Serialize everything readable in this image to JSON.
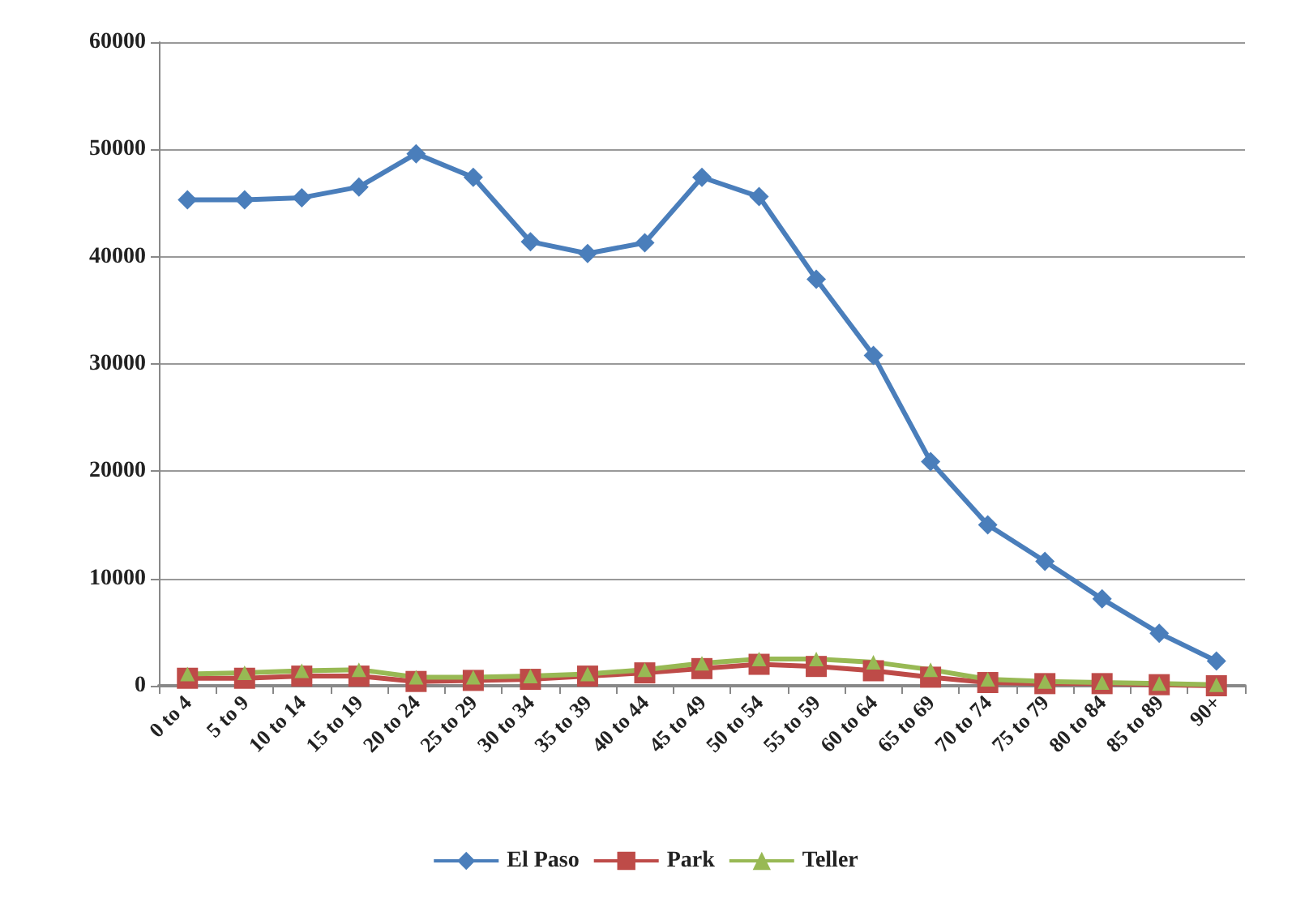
{
  "chart_data": {
    "type": "line",
    "categories": [
      "0 to 4",
      "5 to 9",
      "10 to 14",
      "15 to 19",
      "20 to 24",
      "25 to 29",
      "30 to 34",
      "35 to 39",
      "40 to 44",
      "45 to 49",
      "50 to 54",
      "55 to 59",
      "60 to 64",
      "65 to 69",
      "70 to 74",
      "75 to 79",
      "80 to 84",
      "85 to 89",
      "90+"
    ],
    "series": [
      {
        "name": "El Paso",
        "color": "#4a7ebb",
        "marker": "diamond",
        "values": [
          45300,
          45300,
          45500,
          46500,
          49600,
          47400,
          41400,
          40300,
          41300,
          47400,
          45600,
          37900,
          30800,
          20900,
          15000,
          11600,
          8100,
          4900,
          2300
        ]
      },
      {
        "name": "Park",
        "color": "#be4b48",
        "marker": "square",
        "values": [
          700,
          700,
          900,
          900,
          400,
          500,
          600,
          900,
          1200,
          1600,
          2000,
          1800,
          1400,
          800,
          300,
          200,
          200,
          100,
          0
        ]
      },
      {
        "name": "Teller",
        "color": "#98b954",
        "marker": "triangle",
        "values": [
          1100,
          1200,
          1400,
          1500,
          800,
          800,
          900,
          1100,
          1500,
          2100,
          2500,
          2500,
          2200,
          1500,
          600,
          400,
          300,
          200,
          100
        ]
      }
    ],
    "ylim": [
      0,
      60000
    ],
    "yticks": [
      0,
      10000,
      20000,
      30000,
      40000,
      50000,
      60000
    ],
    "grid": "y",
    "legend": "bottom"
  }
}
